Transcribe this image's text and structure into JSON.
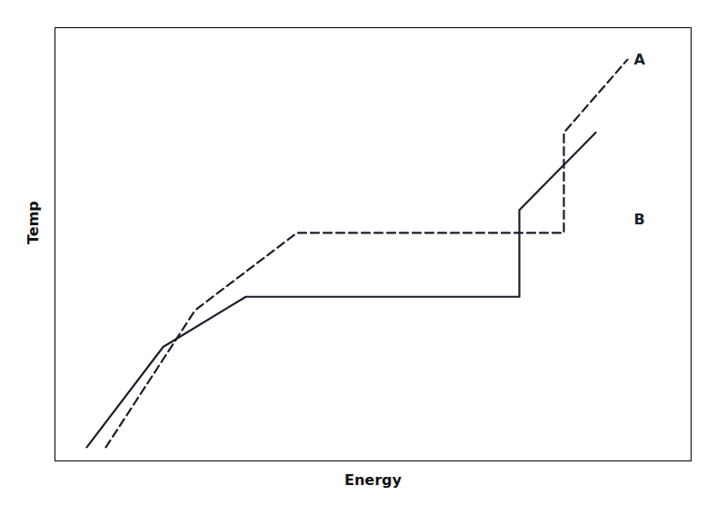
{
  "chart_data": {
    "type": "line",
    "xlabel": "Energy",
    "ylabel": "Temp",
    "series": [
      {
        "x": [
          1.0,
          2.2,
          2.2,
          3.5,
          3.5,
          7.8,
          7.8,
          9.0
        ],
        "values": [
          0.3,
          2.5,
          2.5,
          3.6,
          3.6,
          3.6,
          5.5,
          7.2
        ],
        "color": "#1a1e2a",
        "line_style": "solid"
      },
      {
        "x": [
          1.3,
          2.7,
          2.7,
          4.3,
          4.3,
          8.5,
          8.5,
          9.5
        ],
        "values": [
          0.3,
          3.3,
          3.3,
          5.0,
          5.0,
          5.0,
          7.2,
          8.8
        ],
        "color": "#1a1e2a",
        "line_style": "dashed"
      }
    ],
    "annotations": [
      {
        "text": "A",
        "x": 9.6,
        "y": 8.8,
        "color": "#1a1e2a"
      },
      {
        "text": "B",
        "x": 9.6,
        "y": 5.3,
        "color": "#1a1e2a"
      }
    ],
    "xlim": [
      0.5,
      10.5
    ],
    "ylim": [
      0.0,
      9.5
    ],
    "tick_labels": false
  }
}
